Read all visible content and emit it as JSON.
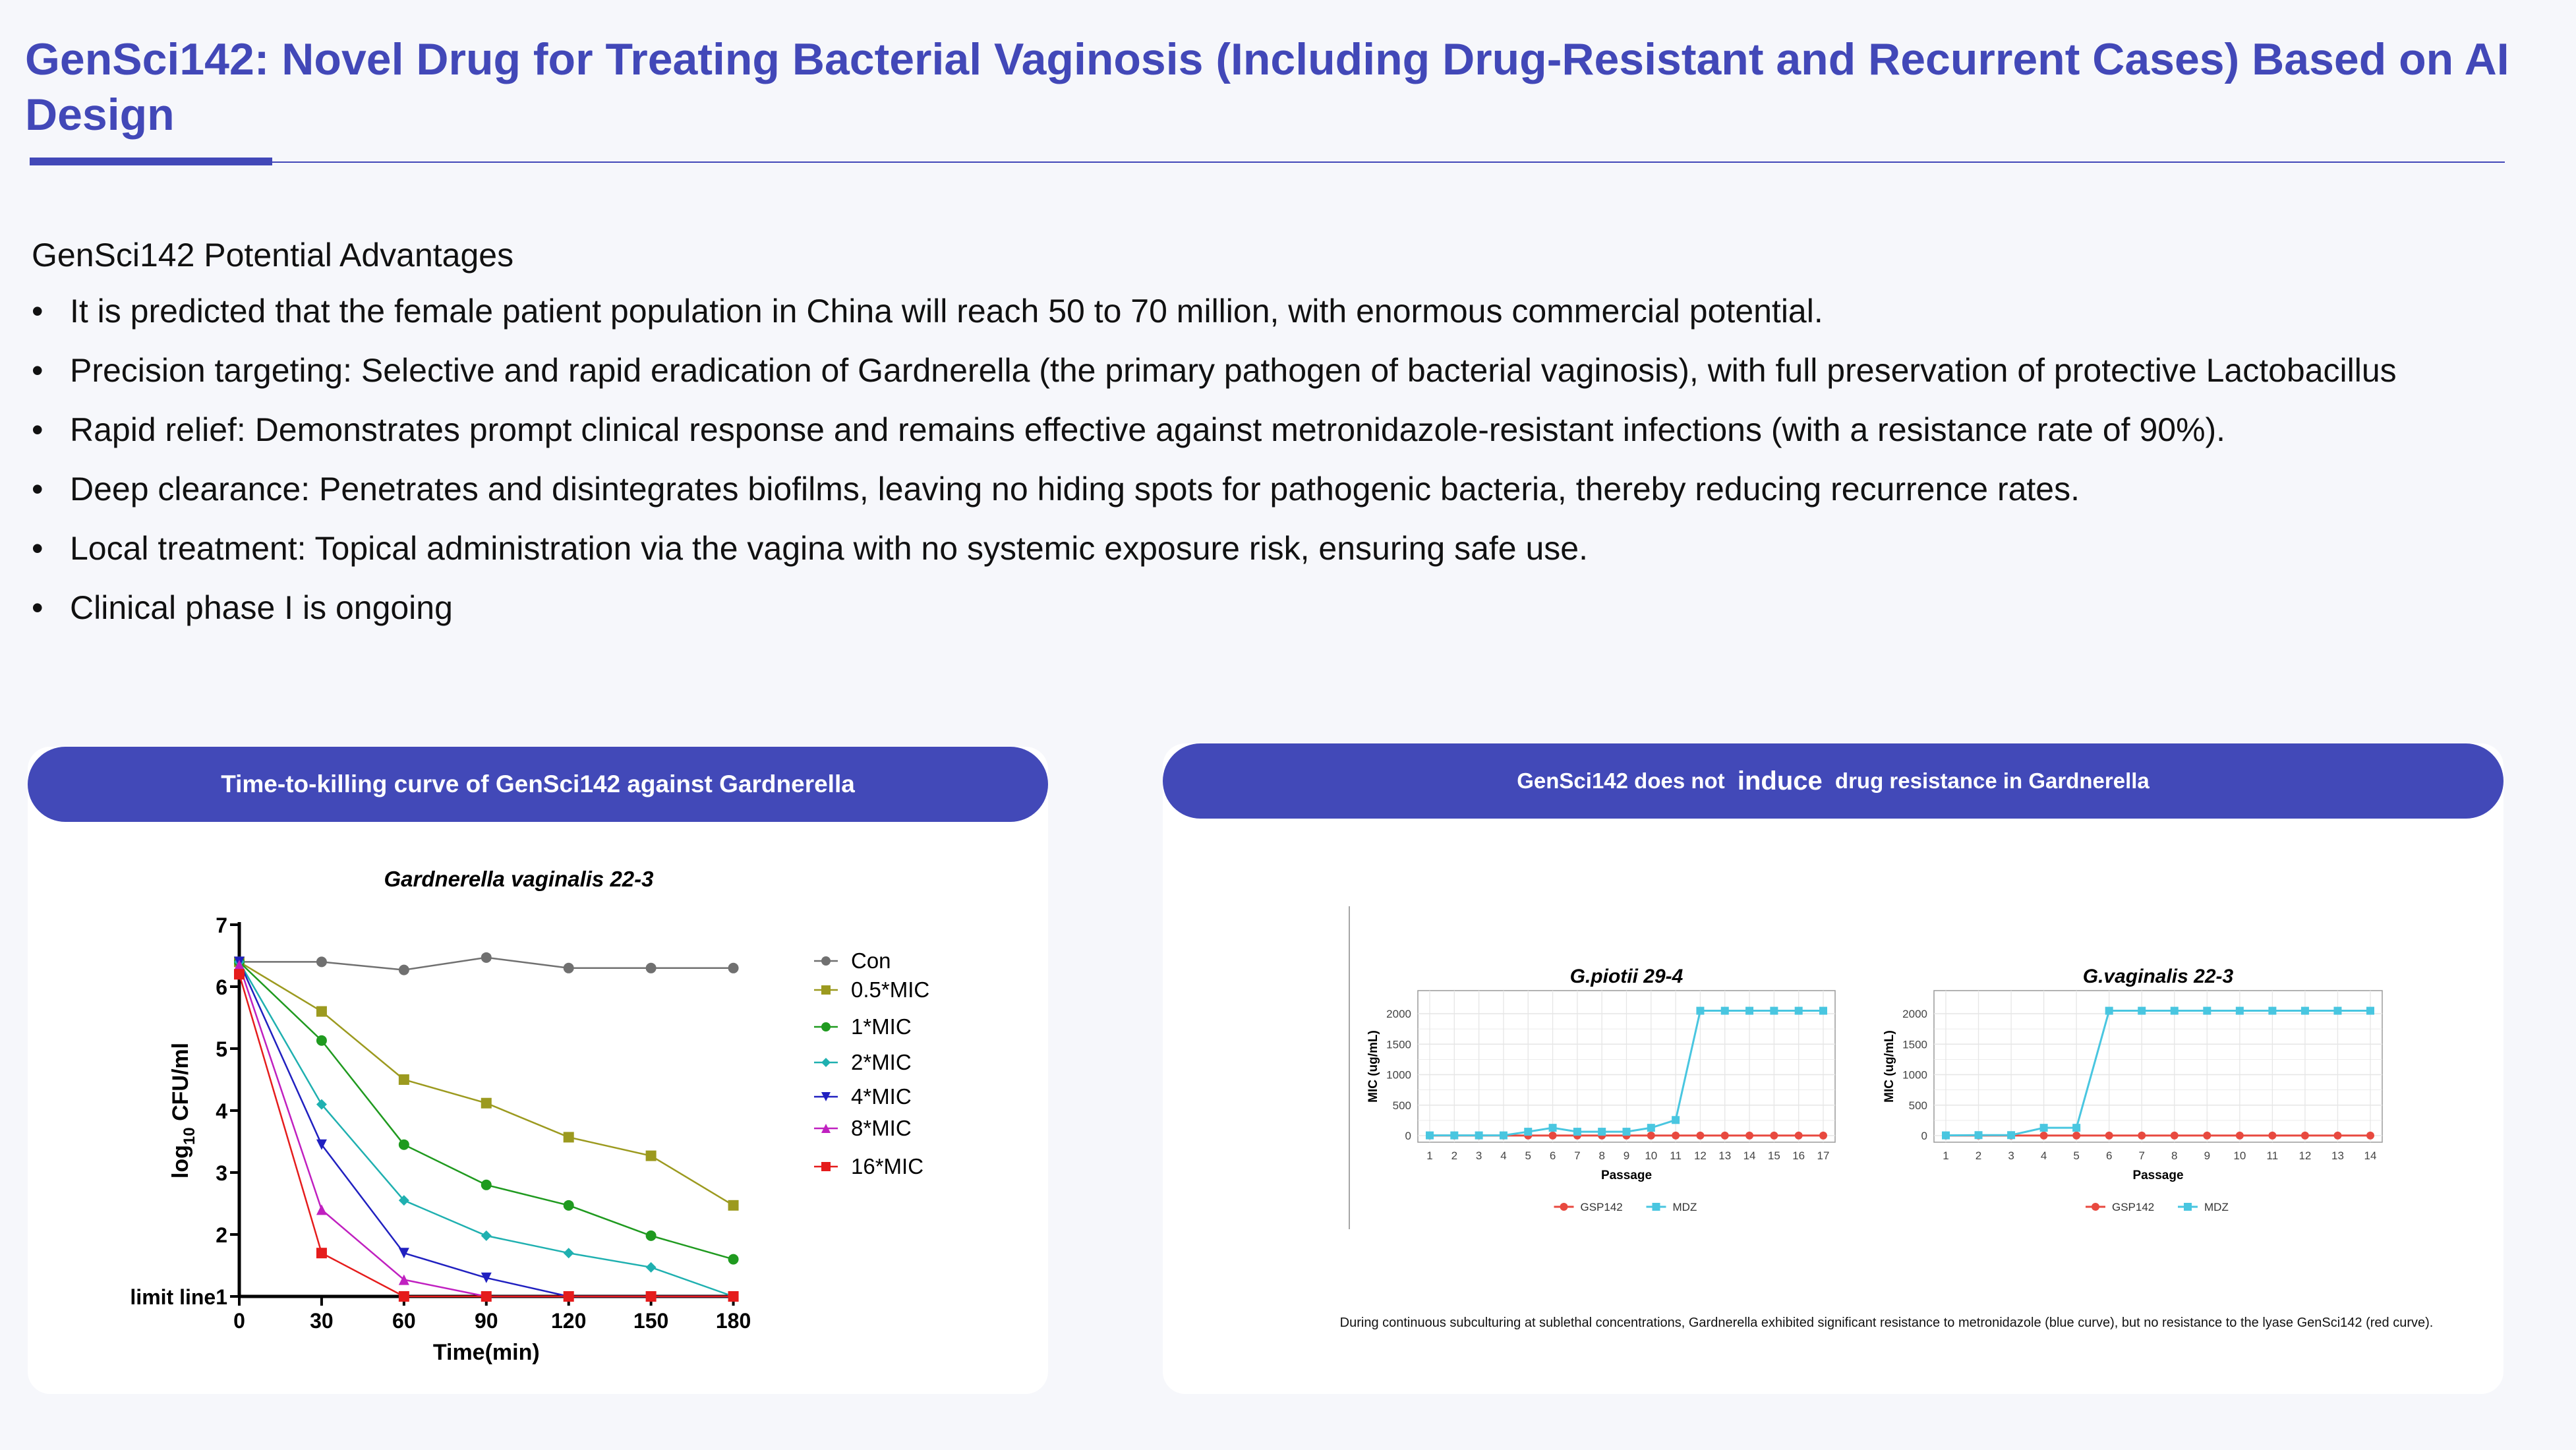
{
  "title": "GenSci142: Novel Drug for Treating Bacterial Vaginosis (Including Drug-Resistant and Recurrent Cases) Based on AI Design",
  "advantages": {
    "heading": "GenSci142 Potential Advantages",
    "bullet_char": "•",
    "items": [
      "It is predicted that the female patient population in China will reach 50 to 70 million, with enormous commercial potential.",
      "Precision targeting: Selective and rapid eradication of Gardnerella (the primary pathogen of bacterial vaginosis), with full preservation of protective Lactobacillus",
      "Rapid relief: Demonstrates prompt clinical response and remains effective against metronidazole-resistant infections (with a resistance rate of 90%).",
      "Deep clearance: Penetrates and disintegrates biofilms, leaving no hiding spots for pathogenic bacteria, thereby reducing recurrence rates.",
      "Local treatment: Topical administration via the vagina with no systemic exposure risk, ensuring safe use.",
      "Clinical phase I is ongoing"
    ]
  },
  "left_card": {
    "header": "Time-to-killing curve of GenSci142 against Gardnerella"
  },
  "right_card": {
    "header_pre": "GenSci142 does not ",
    "header_emph": "induce",
    "header_post": " drug resistance in Gardnerella",
    "caption": "During continuous subculturing at sublethal concentrations, Gardnerella exhibited significant resistance to metronidazole (blue curve), but no resistance to the lyase GenSci142 (red curve)."
  },
  "chart_data": [
    {
      "type": "line",
      "title": "Gardnerella vaginalis 22-3",
      "xlabel": "Time(min)",
      "ylabel": "log10 CFU/ml",
      "ylabel_base": "log",
      "ylabel_sub": "10",
      "ylabel_rest": " CFU/ml",
      "x": [
        0,
        30,
        60,
        90,
        120,
        150,
        180
      ],
      "xlim": [
        0,
        180
      ],
      "ylim": [
        1,
        7
      ],
      "yticks": [
        "limit line1",
        "2",
        "3",
        "4",
        "5",
        "6",
        "7"
      ],
      "series": [
        {
          "name": "Con",
          "color": "#707070",
          "marker": "circle",
          "values": [
            6.4,
            6.4,
            6.27,
            6.47,
            6.3,
            6.3,
            6.3
          ]
        },
        {
          "name": "0.5*MIC",
          "color": "#9c9a1f",
          "marker": "square",
          "values": [
            6.4,
            5.6,
            4.5,
            4.12,
            3.57,
            3.27,
            2.47
          ]
        },
        {
          "name": "1*MIC",
          "color": "#1f9a1f",
          "marker": "circle",
          "values": [
            6.4,
            5.13,
            3.45,
            2.8,
            2.47,
            1.98,
            1.6
          ]
        },
        {
          "name": "2*MIC",
          "color": "#1fb0b0",
          "marker": "diamond",
          "values": [
            6.4,
            4.1,
            2.55,
            1.98,
            1.7,
            1.47,
            1.0
          ]
        },
        {
          "name": "4*MIC",
          "color": "#2020c0",
          "marker": "triangle-down",
          "values": [
            6.4,
            3.45,
            1.7,
            1.3,
            1.0,
            1.0,
            1.0
          ]
        },
        {
          "name": "8*MIC",
          "color": "#c020c0",
          "marker": "triangle-up",
          "values": [
            6.35,
            2.4,
            1.27,
            1.0,
            1.0,
            1.0,
            1.0
          ]
        },
        {
          "name": "16*MIC",
          "color": "#e51c1c",
          "marker": "square",
          "values": [
            6.2,
            1.7,
            1.0,
            1.0,
            1.0,
            1.0,
            1.0
          ]
        }
      ]
    },
    {
      "type": "line",
      "title": "G.piotii 29-4",
      "xlabel": "Passage",
      "ylabel": "MIC (ug/mL)",
      "x": [
        1,
        2,
        3,
        4,
        5,
        6,
        7,
        8,
        9,
        10,
        11,
        12,
        13,
        14,
        15,
        16,
        17
      ],
      "ylim": [
        0,
        2000
      ],
      "yticks": [
        0,
        500,
        1000,
        1500,
        2000
      ],
      "series": [
        {
          "name": "GSP142",
          "color": "#e8493f",
          "values": [
            1,
            1,
            1,
            1,
            1,
            1,
            1,
            1,
            1,
            1,
            1,
            1,
            1,
            1,
            1,
            1,
            1
          ]
        },
        {
          "name": "MDZ",
          "color": "#49c6e0",
          "values": [
            4,
            4,
            4,
            4,
            64,
            128,
            64,
            64,
            64,
            128,
            256,
            2048,
            2048,
            2048,
            2048,
            2048,
            2048
          ]
        }
      ]
    },
    {
      "type": "line",
      "title": "G.vaginalis 22-3",
      "xlabel": "Passage",
      "ylabel": "MIC (ug/mL)",
      "x": [
        1,
        2,
        3,
        4,
        5,
        6,
        7,
        8,
        9,
        10,
        11,
        12,
        13,
        14
      ],
      "ylim": [
        0,
        2000
      ],
      "yticks": [
        0,
        500,
        1000,
        1500,
        2000
      ],
      "series": [
        {
          "name": "GSP142",
          "color": "#e8493f",
          "values": [
            1,
            1,
            1,
            1,
            1,
            1,
            1,
            1,
            1,
            1,
            1,
            1,
            1,
            1
          ]
        },
        {
          "name": "MDZ",
          "color": "#49c6e0",
          "values": [
            4,
            8,
            8,
            128,
            128,
            2048,
            2048,
            2048,
            2048,
            2048,
            2048,
            2048,
            2048,
            2048
          ]
        }
      ]
    }
  ]
}
